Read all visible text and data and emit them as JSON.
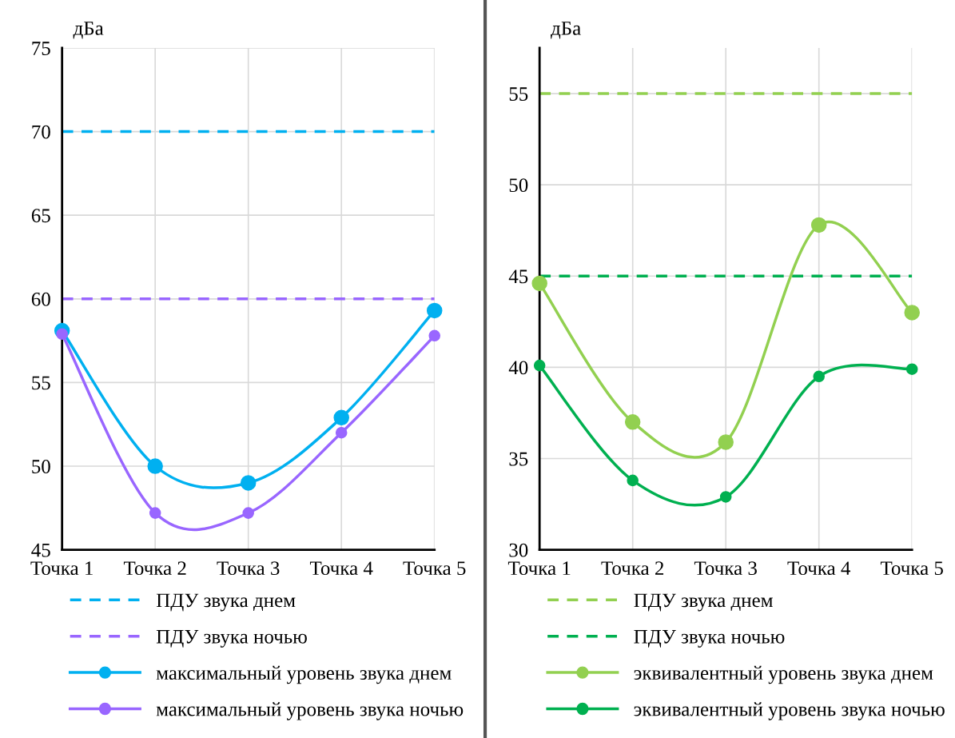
{
  "chart_data": [
    {
      "type": "line",
      "ylabel": "дБа",
      "categories": [
        "Точка 1",
        "Точка 2",
        "Точка 3",
        "Точка 4",
        "Точка 5"
      ],
      "ylim": [
        45,
        75
      ],
      "yticks": [
        45,
        50,
        55,
        60,
        65,
        70,
        75
      ],
      "grid": true,
      "legend": "bottom",
      "marker": "circle",
      "line_style": "solid",
      "ref_lines": [
        {
          "axis": "y",
          "value": 70,
          "label": "ПДУ звука днем",
          "color": "#00b0f0",
          "line_style": "dashed"
        },
        {
          "axis": "y",
          "value": 60,
          "label": "ПДУ звука ночью",
          "color": "#9966ff",
          "line_style": "dashed"
        }
      ],
      "series": [
        {
          "name": "максимальный уровень звука днем",
          "color": "#00b0f0",
          "values": [
            58.1,
            50.0,
            49.0,
            52.9,
            59.3
          ]
        },
        {
          "name": "максимальный уровень звука ночью",
          "color": "#9966ff",
          "values": [
            57.9,
            47.2,
            47.2,
            52.0,
            57.8
          ]
        }
      ]
    },
    {
      "type": "line",
      "ylabel": "дБа",
      "categories": [
        "Точка 1",
        "Точка 2",
        "Точка 3",
        "Точка 4",
        "Точка 5"
      ],
      "ylim": [
        30,
        57.5
      ],
      "yticks": [
        30,
        35,
        40,
        45,
        50,
        55
      ],
      "grid": true,
      "legend": "bottom",
      "marker": "circle",
      "line_style": "solid",
      "ref_lines": [
        {
          "axis": "y",
          "value": 55,
          "label": "ПДУ звука днем",
          "color": "#92d050",
          "line_style": "dashed"
        },
        {
          "axis": "y",
          "value": 45,
          "label": "ПДУ звука ночью",
          "color": "#00b050",
          "line_style": "dashed"
        }
      ],
      "series": [
        {
          "name": "эквивалентный уровень звука днем",
          "color": "#92d050",
          "values": [
            44.6,
            37.0,
            35.9,
            47.8,
            43.0
          ]
        },
        {
          "name": "эквивалентный уровень звука ночью",
          "color": "#00b050",
          "values": [
            40.1,
            33.8,
            32.9,
            39.5,
            39.9
          ]
        }
      ]
    }
  ]
}
